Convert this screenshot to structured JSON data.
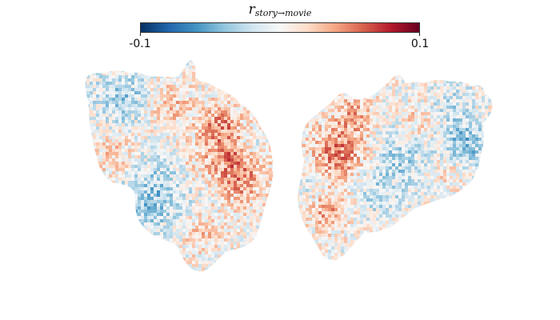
{
  "colorbar": {
    "title_main": "r",
    "title_sub": "story→movie",
    "tick_min_label": "-0.1",
    "tick_max_label": "0.1",
    "vmin": -0.1,
    "vmax": 0.1,
    "colormap": [
      "#053061",
      "#2166ac",
      "#4393c3",
      "#92c5de",
      "#d1e5f0",
      "#f7f7f7",
      "#fddbc7",
      "#f4a582",
      "#d6604d",
      "#b2182b",
      "#67001f"
    ]
  },
  "colors": {
    "negative": "#2166ac",
    "neutral": "#f7f7f7",
    "positive": "#b2182b"
  }
}
